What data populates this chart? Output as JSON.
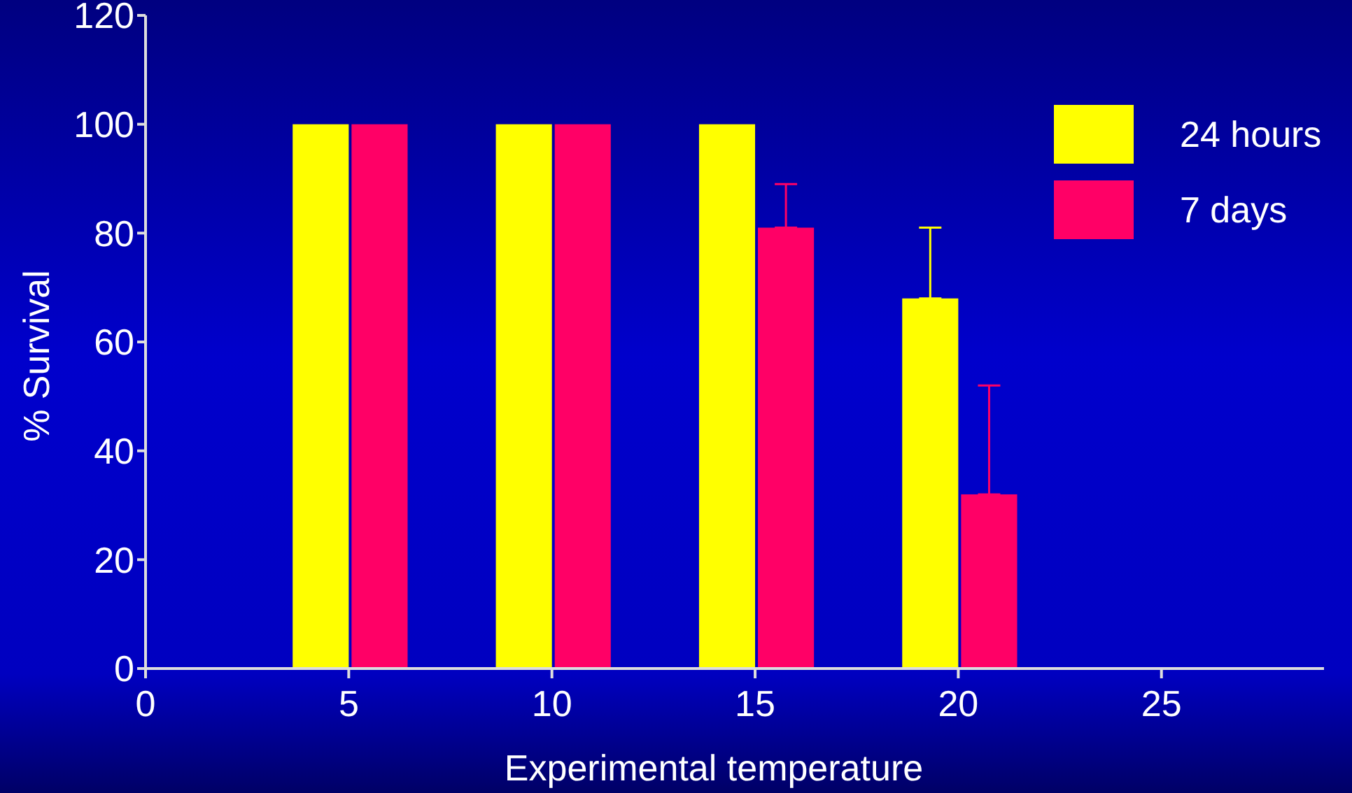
{
  "chart_data": {
    "type": "bar",
    "xlabel": "Experimental temperature",
    "ylabel": "% Survival",
    "x": [
      5,
      10,
      15,
      20
    ],
    "series": [
      {
        "name": "24 hours",
        "color": "#ffff00",
        "values": [
          100,
          100,
          100,
          68
        ],
        "errors": [
          null,
          null,
          null,
          [
            68,
            81
          ]
        ]
      },
      {
        "name": "7 days",
        "color": "#ff0066",
        "values": [
          100,
          100,
          81,
          32
        ],
        "errors": [
          null,
          null,
          [
            81,
            89
          ],
          [
            32,
            52
          ]
        ]
      }
    ],
    "xlim": [
      0,
      29
    ],
    "xticks": [
      0,
      5,
      10,
      15,
      20,
      25
    ],
    "ylim": [
      0,
      120
    ],
    "yticks": [
      0,
      20,
      40,
      60,
      80,
      100,
      120
    ],
    "grid": false,
    "legend": "top right"
  }
}
